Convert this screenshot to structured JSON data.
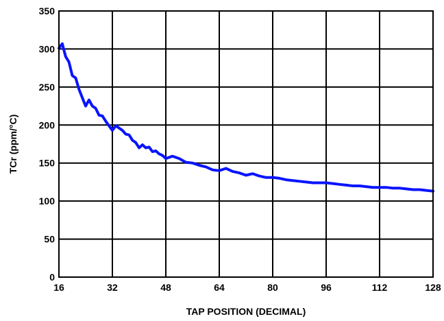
{
  "chart_data": {
    "type": "line",
    "xlabel": "TAP POSITION (DECIMAL)",
    "ylabel": "TCr (ppm/°C)",
    "xlim": [
      16,
      128
    ],
    "ylim": [
      0,
      350
    ],
    "x_ticks": [
      16,
      32,
      48,
      64,
      80,
      96,
      112,
      128
    ],
    "y_ticks": [
      0,
      50,
      100,
      150,
      200,
      250,
      300,
      350
    ],
    "grid": true,
    "legend": "none",
    "colors": {
      "line": "#0a14ff",
      "grid": "#000000",
      "text": "#000000"
    },
    "series": [
      {
        "x": [
          16,
          17,
          18,
          19,
          20,
          21,
          22,
          23,
          24,
          25,
          26,
          27,
          28,
          29,
          30,
          31,
          32,
          33,
          34,
          35,
          36,
          37,
          38,
          39,
          40,
          41,
          42,
          43,
          44,
          45,
          46,
          47,
          48,
          50,
          52,
          54,
          56,
          58,
          60,
          62,
          64,
          66,
          68,
          70,
          72,
          74,
          76,
          78,
          80,
          82,
          84,
          86,
          88,
          90,
          92,
          94,
          96,
          98,
          100,
          102,
          104,
          106,
          108,
          110,
          112,
          114,
          116,
          118,
          120,
          122,
          124,
          126,
          128
        ],
        "values": [
          301,
          307,
          290,
          283,
          265,
          262,
          247,
          236,
          225,
          233,
          225,
          222,
          213,
          212,
          205,
          199,
          193,
          199,
          196,
          193,
          188,
          187,
          180,
          177,
          170,
          174,
          170,
          171,
          165,
          166,
          162,
          160,
          156,
          159,
          156,
          151,
          150,
          147,
          145,
          141,
          140,
          143,
          139,
          137,
          134,
          136,
          133,
          131,
          131,
          130,
          128,
          127,
          126,
          125,
          124,
          124,
          124,
          123,
          122,
          121,
          120,
          120,
          119,
          118,
          118,
          118,
          117,
          117,
          116,
          115,
          115,
          114,
          113
        ]
      }
    ]
  }
}
